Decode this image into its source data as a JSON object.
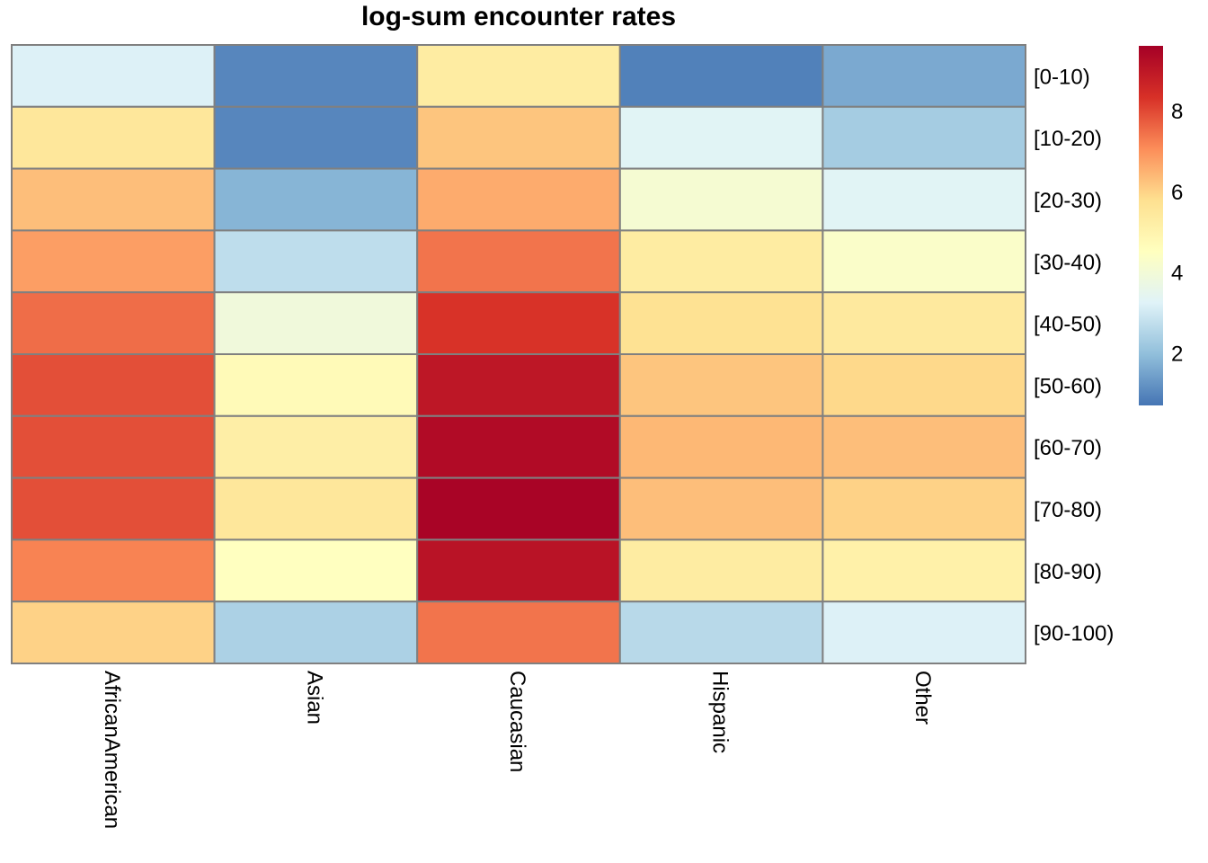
{
  "chart_data": {
    "type": "heatmap",
    "title": "log-sum encounter rates",
    "columns": [
      "AfricanAmerican",
      "Asian",
      "Caucasian",
      "Hispanic",
      "Other"
    ],
    "rows": [
      "[0-10)",
      "[10-20)",
      "[20-30)",
      "[30-40)",
      "[40-50)",
      "[50-60)",
      "[60-70)",
      "[70-80)",
      "[80-90)",
      "[90-100)"
    ],
    "values": [
      [
        3.2,
        1.0,
        5.3,
        0.9,
        1.6
      ],
      [
        5.5,
        1.0,
        6.2,
        3.3,
        2.3
      ],
      [
        6.3,
        1.8,
        6.6,
        4.1,
        3.3
      ],
      [
        6.8,
        2.7,
        7.4,
        5.3,
        4.3
      ],
      [
        7.5,
        3.9,
        8.3,
        5.7,
        5.4
      ],
      [
        7.9,
        4.7,
        9.0,
        6.2,
        5.9
      ],
      [
        7.9,
        5.2,
        9.3,
        6.4,
        6.3
      ],
      [
        7.9,
        5.5,
        9.5,
        6.3,
        6.0
      ],
      [
        7.2,
        4.5,
        9.1,
        5.3,
        5.1
      ],
      [
        6.0,
        2.4,
        7.4,
        2.6,
        3.2
      ]
    ],
    "color_scale": {
      "min": 0.7,
      "max": 9.6,
      "colors": [
        "#4575B4",
        "#91BFDB",
        "#E0F3F8",
        "#FFFFBF",
        "#FEE090",
        "#FC8D59",
        "#D73027",
        "#A50026"
      ]
    },
    "legend": {
      "position": "right",
      "ticks": [
        2,
        4,
        6,
        8
      ]
    },
    "cell_border_color": "#808080"
  }
}
